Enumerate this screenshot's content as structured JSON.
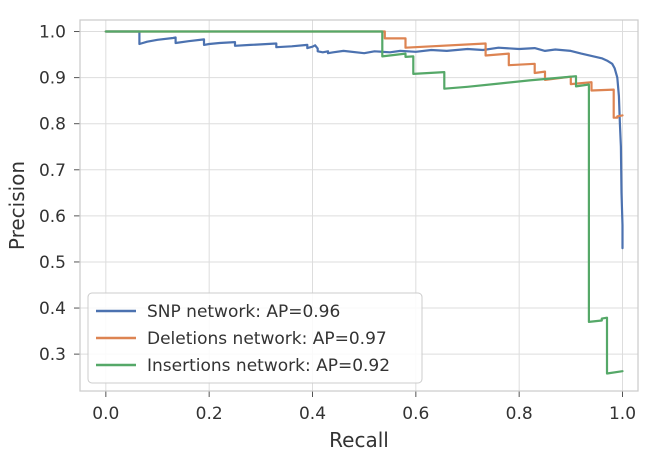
{
  "chart_data": {
    "type": "line",
    "title": "",
    "xlabel": "Recall",
    "ylabel": "Precision",
    "xlim": [
      -0.05,
      1.03
    ],
    "ylim": [
      0.22,
      1.025
    ],
    "xticks": [
      0.0,
      0.2,
      0.4,
      0.6,
      0.8,
      1.0
    ],
    "xtick_labels": [
      "0.0",
      "0.2",
      "0.4",
      "0.6",
      "0.8",
      "1.0"
    ],
    "yticks": [
      0.3,
      0.4,
      0.5,
      0.6,
      0.7,
      0.8,
      0.9,
      1.0
    ],
    "ytick_labels": [
      "0.3",
      "0.4",
      "0.5",
      "0.6",
      "0.7",
      "0.8",
      "0.9",
      "1.0"
    ],
    "grid": true,
    "legend_position": "lower-left",
    "series": [
      {
        "name": "SNP network: AP=0.96",
        "color": "#4c72b0",
        "x": [
          0.0,
          0.065,
          0.065,
          0.08,
          0.1,
          0.13,
          0.135,
          0.135,
          0.16,
          0.19,
          0.19,
          0.2,
          0.22,
          0.25,
          0.25,
          0.28,
          0.3,
          0.33,
          0.33,
          0.36,
          0.39,
          0.39,
          0.4,
          0.405,
          0.41,
          0.41,
          0.42,
          0.43,
          0.43,
          0.44,
          0.46,
          0.5,
          0.52,
          0.55,
          0.57,
          0.6,
          0.63,
          0.66,
          0.7,
          0.73,
          0.76,
          0.8,
          0.83,
          0.85,
          0.87,
          0.9,
          0.92,
          0.94,
          0.96,
          0.97,
          0.98,
          0.985,
          0.99,
          0.993,
          0.995,
          0.997,
          0.998,
          1.0,
          1.0
        ],
        "y": [
          1.0,
          1.0,
          0.973,
          0.978,
          0.982,
          0.986,
          0.987,
          0.975,
          0.979,
          0.983,
          0.971,
          0.973,
          0.975,
          0.977,
          0.969,
          0.971,
          0.972,
          0.974,
          0.966,
          0.968,
          0.971,
          0.964,
          0.967,
          0.97,
          0.963,
          0.957,
          0.955,
          0.957,
          0.953,
          0.955,
          0.958,
          0.953,
          0.957,
          0.955,
          0.958,
          0.956,
          0.96,
          0.958,
          0.962,
          0.96,
          0.965,
          0.962,
          0.964,
          0.958,
          0.961,
          0.958,
          0.952,
          0.947,
          0.942,
          0.937,
          0.93,
          0.92,
          0.9,
          0.86,
          0.8,
          0.75,
          0.65,
          0.58,
          0.53
        ]
      },
      {
        "name": "Deletions network: AP=0.97",
        "color": "#dd8452",
        "x": [
          0.0,
          0.54,
          0.54,
          0.58,
          0.58,
          0.735,
          0.735,
          0.78,
          0.78,
          0.83,
          0.83,
          0.85,
          0.85,
          0.9,
          0.9,
          0.94,
          0.94,
          0.983,
          0.983,
          0.99,
          0.99,
          1.0
        ],
        "y": [
          1.0,
          1.0,
          0.985,
          0.985,
          0.965,
          0.974,
          0.948,
          0.952,
          0.927,
          0.93,
          0.91,
          0.913,
          0.895,
          0.902,
          0.886,
          0.89,
          0.872,
          0.874,
          0.813,
          0.813,
          0.816,
          0.818
        ]
      },
      {
        "name": "Insertions network: AP=0.92",
        "color": "#55a868",
        "x": [
          0.0,
          0.535,
          0.535,
          0.58,
          0.58,
          0.595,
          0.595,
          0.655,
          0.655,
          0.7,
          0.76,
          0.82,
          0.88,
          0.91,
          0.91,
          0.935,
          0.935,
          0.96,
          0.96,
          0.97,
          0.97,
          1.0
        ],
        "y": [
          1.0,
          1.0,
          0.946,
          0.952,
          0.945,
          0.946,
          0.908,
          0.912,
          0.876,
          0.88,
          0.887,
          0.894,
          0.9,
          0.903,
          0.881,
          0.885,
          0.37,
          0.373,
          0.377,
          0.379,
          0.258,
          0.263
        ]
      }
    ]
  }
}
